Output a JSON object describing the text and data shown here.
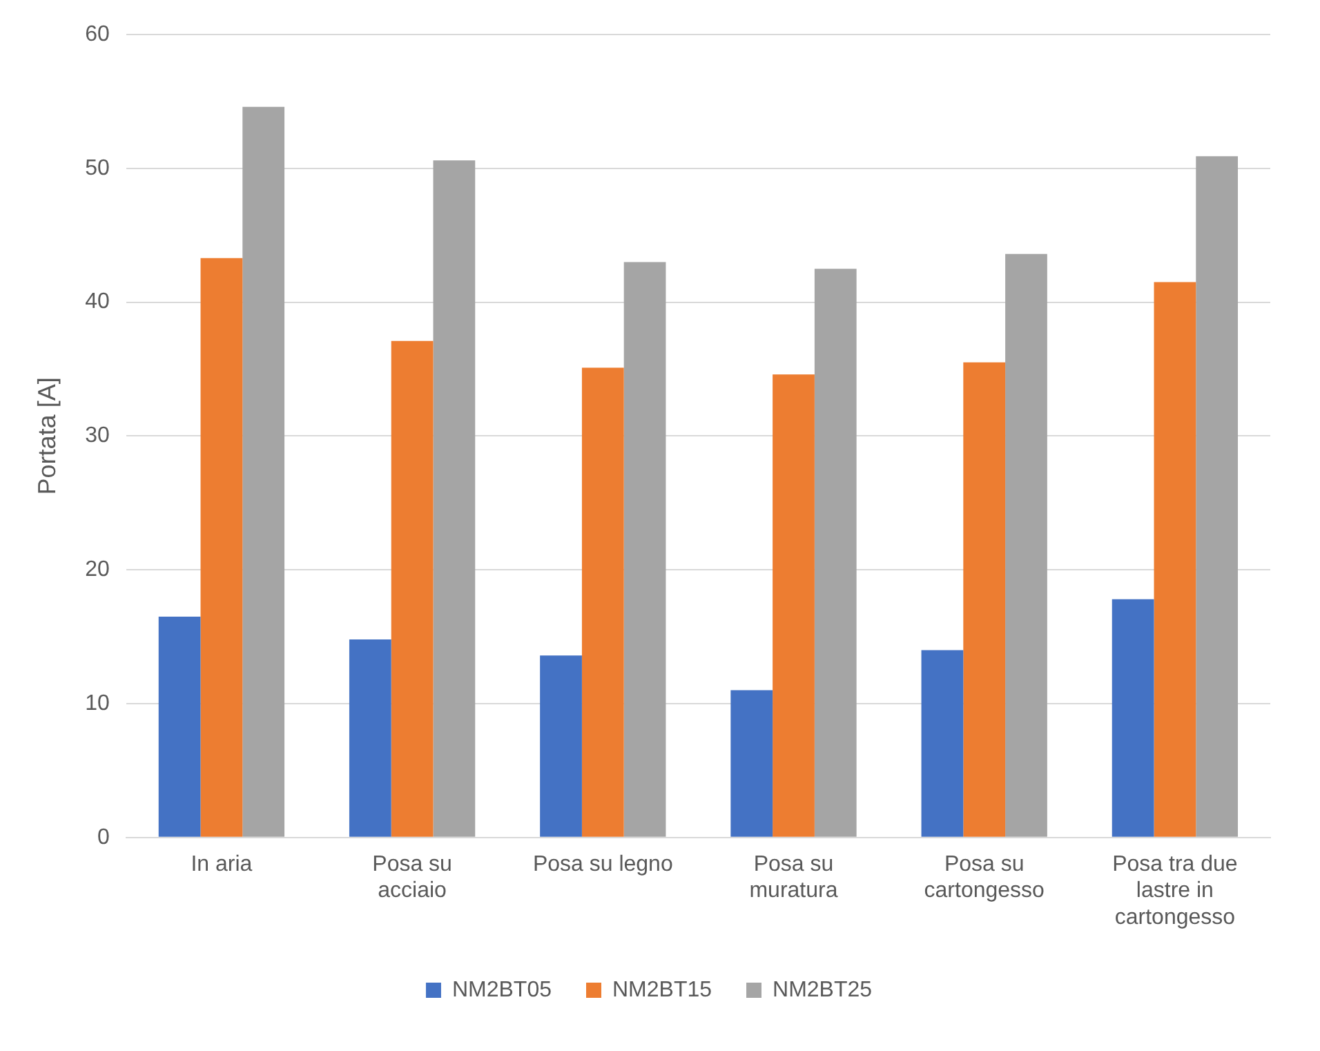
{
  "chart_data": {
    "type": "bar",
    "ylabel": "Portata [A]",
    "categories": [
      "In aria",
      "Posa su acciaio",
      "Posa su legno",
      "Posa su muratura",
      "Posa su cartongesso",
      "Posa tra due lastre in cartongesso"
    ],
    "series": [
      {
        "name": "NM2BT05",
        "color": "#4472c4",
        "values": [
          16.5,
          14.8,
          13.6,
          11.0,
          14.0,
          17.8
        ]
      },
      {
        "name": "NM2BT15",
        "color": "#ed7d31",
        "values": [
          43.3,
          37.1,
          35.1,
          34.6,
          35.5,
          41.5
        ]
      },
      {
        "name": "NM2BT25",
        "color": "#a5a5a5",
        "values": [
          54.6,
          50.6,
          43.0,
          42.5,
          43.6,
          50.9
        ]
      }
    ],
    "ylim": [
      0,
      60
    ],
    "yticks": [
      0,
      10,
      20,
      30,
      40,
      50,
      60
    ],
    "grid": "y",
    "legend": "bottom"
  }
}
